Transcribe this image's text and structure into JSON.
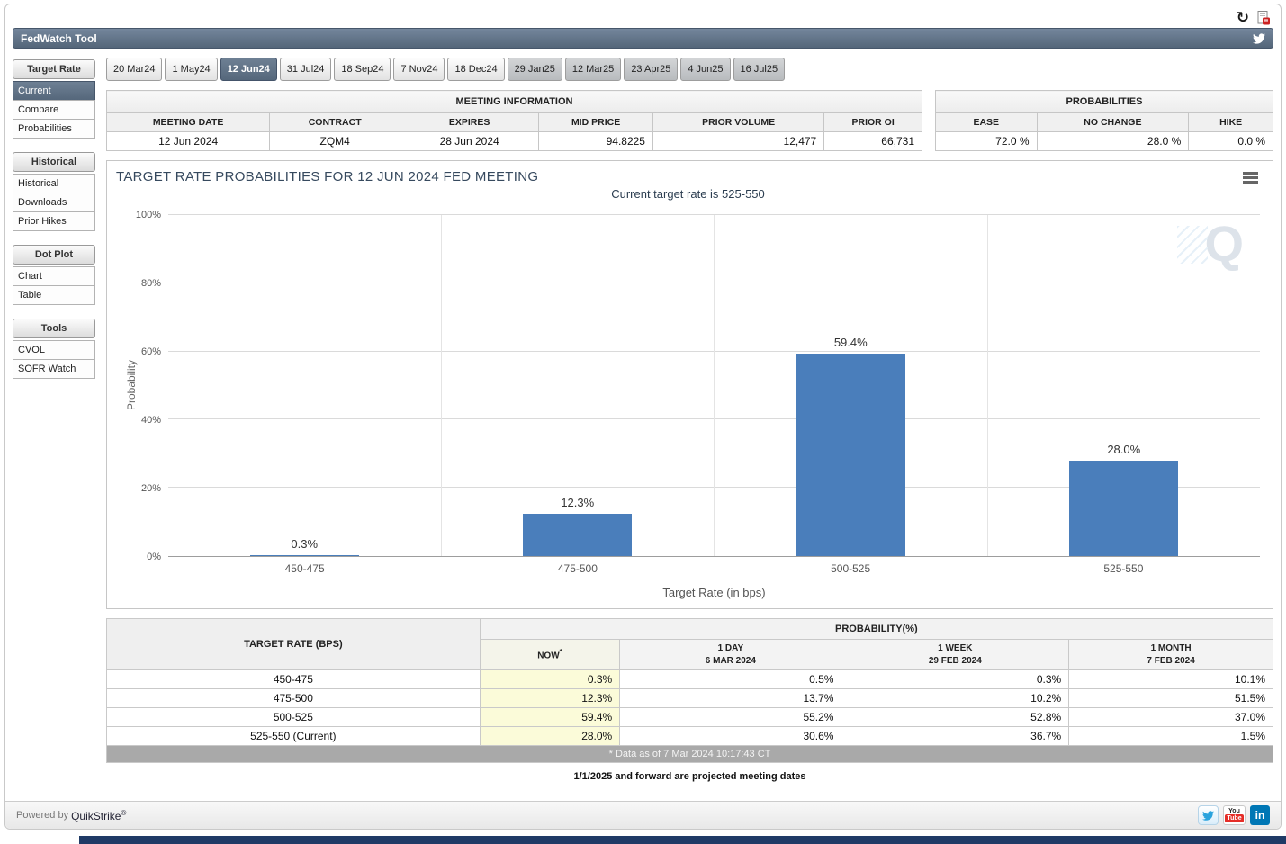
{
  "app": {
    "title": "FedWatch Tool"
  },
  "top_icons": {
    "refresh_glyph": "↻"
  },
  "sidebar": {
    "sections": [
      {
        "header": "Target Rate",
        "items": [
          "Current",
          "Compare",
          "Probabilities"
        ]
      },
      {
        "header": "Historical",
        "items": [
          "Historical",
          "Downloads",
          "Prior Hikes"
        ]
      },
      {
        "header": "Dot Plot",
        "items": [
          "Chart",
          "Table"
        ]
      },
      {
        "header": "Tools",
        "items": [
          "CVOL",
          "SOFR Watch"
        ]
      }
    ],
    "selected": "Current"
  },
  "tabs": {
    "items": [
      "20 Mar24",
      "1 May24",
      "12 Jun24",
      "31 Jul24",
      "18 Sep24",
      "7 Nov24",
      "18 Dec24",
      "29 Jan25",
      "12 Mar25",
      "23 Apr25",
      "4 Jun25",
      "16 Jul25"
    ],
    "selected": "12 Jun24"
  },
  "meeting_info": {
    "title": "MEETING INFORMATION",
    "headers": [
      "MEETING DATE",
      "CONTRACT",
      "EXPIRES",
      "MID PRICE",
      "PRIOR VOLUME",
      "PRIOR OI"
    ],
    "values": [
      "12 Jun 2024",
      "ZQM4",
      "28 Jun 2024",
      "94.8225",
      "12,477",
      "66,731"
    ]
  },
  "probabilities": {
    "title": "PROBABILITIES",
    "headers": [
      "EASE",
      "NO CHANGE",
      "HIKE"
    ],
    "values": [
      "72.0 %",
      "28.0 %",
      "0.0 %"
    ]
  },
  "chart_data": {
    "type": "bar",
    "title": "TARGET RATE PROBABILITIES FOR 12 JUN 2024 FED MEETING",
    "subtitle": "Current target rate is 525-550",
    "categories": [
      "450-475",
      "475-500",
      "500-525",
      "525-550"
    ],
    "values": [
      0.3,
      12.3,
      59.4,
      28.0
    ],
    "value_labels": [
      "0.3%",
      "12.3%",
      "59.4%",
      "28.0%"
    ],
    "xlabel": "Target Rate (in bps)",
    "ylabel": "Probability",
    "ylim": [
      0,
      100
    ],
    "ytick_values": [
      0,
      20,
      40,
      60,
      80,
      100
    ],
    "ytick_labels": [
      "0%",
      "20%",
      "40%",
      "60%",
      "80%",
      "100%"
    ],
    "bar_color": "#4a7ebb",
    "grid": true,
    "legend": false,
    "watermark": "Q"
  },
  "probability_table": {
    "left_header": "TARGET RATE (BPS)",
    "group_header": "PROBABILITY(%)",
    "columns": [
      {
        "line1": "NOW",
        "sup": "*",
        "line2": ""
      },
      {
        "line1": "1 DAY",
        "line2": "6 MAR 2024"
      },
      {
        "line1": "1 WEEK",
        "line2": "29 FEB 2024"
      },
      {
        "line1": "1 MONTH",
        "line2": "7 FEB 2024"
      }
    ],
    "rows": [
      {
        "rate": "450-475",
        "values": [
          "0.3%",
          "0.5%",
          "0.3%",
          "10.1%"
        ]
      },
      {
        "rate": "475-500",
        "values": [
          "12.3%",
          "13.7%",
          "10.2%",
          "51.5%"
        ]
      },
      {
        "rate": "500-525",
        "values": [
          "59.4%",
          "55.2%",
          "52.8%",
          "37.0%"
        ]
      },
      {
        "rate": "525-550 (Current)",
        "values": [
          "28.0%",
          "30.6%",
          "36.7%",
          "1.5%"
        ]
      }
    ],
    "footnote": "* Data as of 7 Mar 2024 10:17:43 CT",
    "projection_note": "1/1/2025 and forward are projected meeting dates"
  },
  "footer": {
    "powered_by": "Powered by",
    "brand": "QuikStrike",
    "reg": "®",
    "social": {
      "linkedin_label": "in",
      "youtube_top": "You",
      "youtube_bottom": "Tube"
    }
  },
  "colors": {
    "header_bar": "#5b6e84",
    "selected_tab": "#5b6e84",
    "bar": "#4a7ebb",
    "now_column_bg": "#fbfbd9",
    "footnote_bar_bg": "#a9a9a9"
  }
}
